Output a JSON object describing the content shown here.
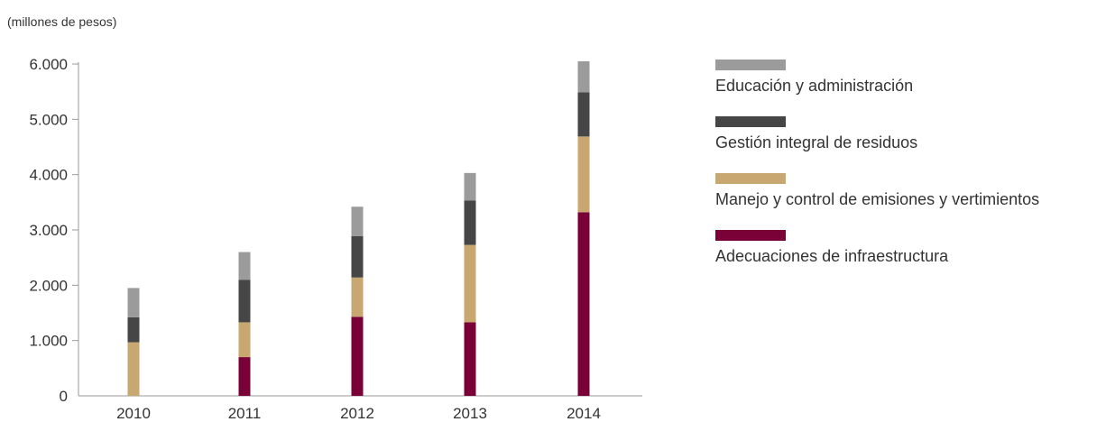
{
  "chart_data": {
    "type": "bar",
    "stacked": true,
    "unit_label": "(millones de pesos)",
    "categories": [
      "2010",
      "2011",
      "2012",
      "2013",
      "2014"
    ],
    "series": [
      {
        "name": "Adecuaciones de infraestructura",
        "color": "#7a0038",
        "values": [
          0,
          700,
          1430,
          1330,
          3320
        ]
      },
      {
        "name": "Manejo y control de emisiones y vertimientos",
        "color": "#c8a770",
        "values": [
          970,
          630,
          710,
          1400,
          1370
        ]
      },
      {
        "name": "Gestión integral de residuos",
        "color": "#464646",
        "values": [
          450,
          770,
          750,
          800,
          800
        ]
      },
      {
        "name": "Educación y administración",
        "color": "#9b9b9b",
        "values": [
          530,
          500,
          530,
          500,
          560
        ]
      }
    ],
    "y_ticks": [
      "0",
      "1.000",
      "2.000",
      "3.000",
      "4.000",
      "5.000",
      "6.000"
    ],
    "y_tick_values": [
      0,
      1000,
      2000,
      3000,
      4000,
      5000,
      6000
    ],
    "ylim": [
      0,
      6000
    ],
    "legend_position": "right",
    "grid": false
  }
}
